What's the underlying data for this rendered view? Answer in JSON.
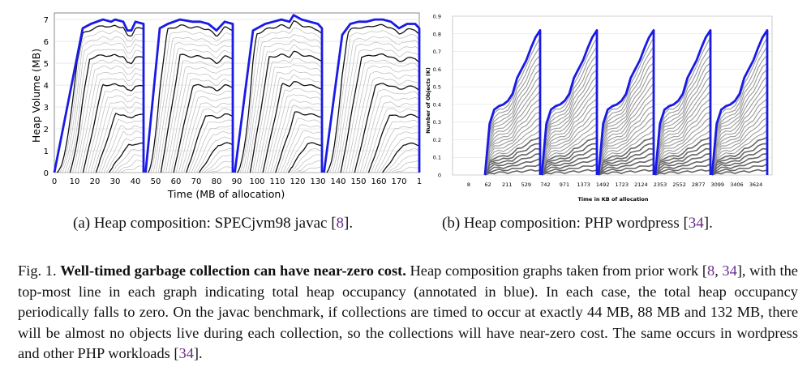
{
  "chart_data": [
    {
      "type": "area",
      "ylabel": "Heap Volume (MB)",
      "xlabel": "Time (MB of allocation)",
      "xlim": [
        0,
        180
      ],
      "ylim": [
        0,
        7.3
      ],
      "yticks": [
        "0",
        "1",
        "2",
        "3",
        "4",
        "5",
        "6",
        "7"
      ],
      "xticks": [
        "0",
        "10",
        "20",
        "30",
        "40",
        "50",
        "60",
        "70",
        "80",
        "90",
        "100",
        "110",
        "120",
        "130",
        "140",
        "150",
        "160",
        "170",
        "1"
      ],
      "cycles": [
        {
          "start": 0,
          "end": 44,
          "top": [
            [
              0,
              0
            ],
            [
              14,
              6.6
            ],
            [
              18,
              6.8
            ],
            [
              24,
              7.0
            ],
            [
              28,
              6.9
            ],
            [
              30,
              7.0
            ],
            [
              34,
              6.9
            ],
            [
              36,
              6.5
            ],
            [
              38,
              6.5
            ],
            [
              40,
              6.9
            ],
            [
              44,
              6.8
            ]
          ]
        },
        {
          "start": 45,
          "end": 88,
          "top": [
            [
              45,
              0
            ],
            [
              52,
              6.6
            ],
            [
              56,
              6.8
            ],
            [
              62,
              7.0
            ],
            [
              68,
              6.9
            ],
            [
              72,
              6.9
            ],
            [
              76,
              6.8
            ],
            [
              80,
              6.5
            ],
            [
              84,
              6.9
            ],
            [
              88,
              6.8
            ]
          ]
        },
        {
          "start": 89,
          "end": 132,
          "top": [
            [
              89,
              0
            ],
            [
              98,
              6.5
            ],
            [
              104,
              6.8
            ],
            [
              108,
              6.9
            ],
            [
              112,
              7.0
            ],
            [
              116,
              6.9
            ],
            [
              118,
              7.2
            ],
            [
              122,
              7.0
            ],
            [
              126,
              6.9
            ],
            [
              130,
              6.8
            ],
            [
              132,
              6.6
            ]
          ]
        },
        {
          "start": 133,
          "end": 180,
          "top": [
            [
              133,
              0
            ],
            [
              142,
              6.3
            ],
            [
              146,
              6.8
            ],
            [
              150,
              6.9
            ],
            [
              154,
              6.9
            ],
            [
              158,
              7.0
            ],
            [
              162,
              7.0
            ],
            [
              166,
              6.9
            ],
            [
              170,
              6.6
            ],
            [
              174,
              6.8
            ],
            [
              178,
              6.8
            ],
            [
              180,
              6.6
            ]
          ]
        }
      ],
      "grid": true
    },
    {
      "type": "area",
      "ylabel": "Number of Objects (K)",
      "xlabel": "Time in KB of allocation",
      "ylim": [
        0,
        0.9
      ],
      "yticks": [
        "0",
        "0.1",
        "0.2",
        "0.3",
        "0.4",
        "0.5",
        "0.6",
        "0.7",
        "0.8",
        "0.9"
      ],
      "xticks": [
        "8",
        "62",
        "211",
        "529",
        "742",
        "971",
        "1373",
        "1492",
        "1723",
        "2124",
        "2353",
        "2552",
        "2877",
        "3099",
        "3406",
        "3624"
      ],
      "cycles": [
        {
          "top": [
            0,
            0.29,
            0.37,
            0.39,
            0.4,
            0.42,
            0.46,
            0.55,
            0.6,
            0.65,
            0.72,
            0.78,
            0.82
          ]
        },
        {
          "top": [
            0,
            0.29,
            0.37,
            0.39,
            0.4,
            0.42,
            0.46,
            0.55,
            0.6,
            0.65,
            0.72,
            0.78,
            0.82
          ]
        },
        {
          "top": [
            0,
            0.29,
            0.37,
            0.39,
            0.4,
            0.42,
            0.46,
            0.55,
            0.6,
            0.65,
            0.72,
            0.78,
            0.82
          ]
        },
        {
          "top": [
            0,
            0.29,
            0.37,
            0.39,
            0.4,
            0.42,
            0.46,
            0.55,
            0.6,
            0.65,
            0.72,
            0.78,
            0.82
          ]
        },
        {
          "top": [
            0,
            0.29,
            0.37,
            0.39,
            0.4,
            0.42,
            0.46,
            0.55,
            0.6,
            0.65,
            0.72,
            0.78,
            0.82
          ]
        }
      ],
      "grid": true
    }
  ],
  "subcaption_a": {
    "text": "(a) Heap composition: SPECjvm98 javac [",
    "ref": "8",
    "end": "]."
  },
  "subcaption_b": {
    "text": "(b) Heap composition: PHP wordpress [",
    "ref": "34",
    "end": "]."
  },
  "caption": {
    "label": "Fig. 1.",
    "bold": "Well-timed garbage collection can have near-zero cost.",
    "part1": "Heap composition graphs taken from prior work [",
    "ref1": "8",
    "sep": ", ",
    "ref2": "34",
    "part2": "], with the top-most line in each graph indicating total heap occupancy (annotated in blue). In each case, the total heap occupancy periodically falls to zero. On the javac benchmark, if collections are timed to occur at exactly 44 MB, 88 MB and 132 MB, there will be almost no objects live during each collection, so the collections will have near-zero cost. The same occurs in wordpress and other PHP workloads [",
    "ref3": "34",
    "part3": "]."
  },
  "colors": {
    "highlight": "#1a1ae6",
    "dark_line": "#111111",
    "light_line": "#bbbbbb",
    "grid": "#dddddd",
    "ref": "#6a2c8a"
  }
}
